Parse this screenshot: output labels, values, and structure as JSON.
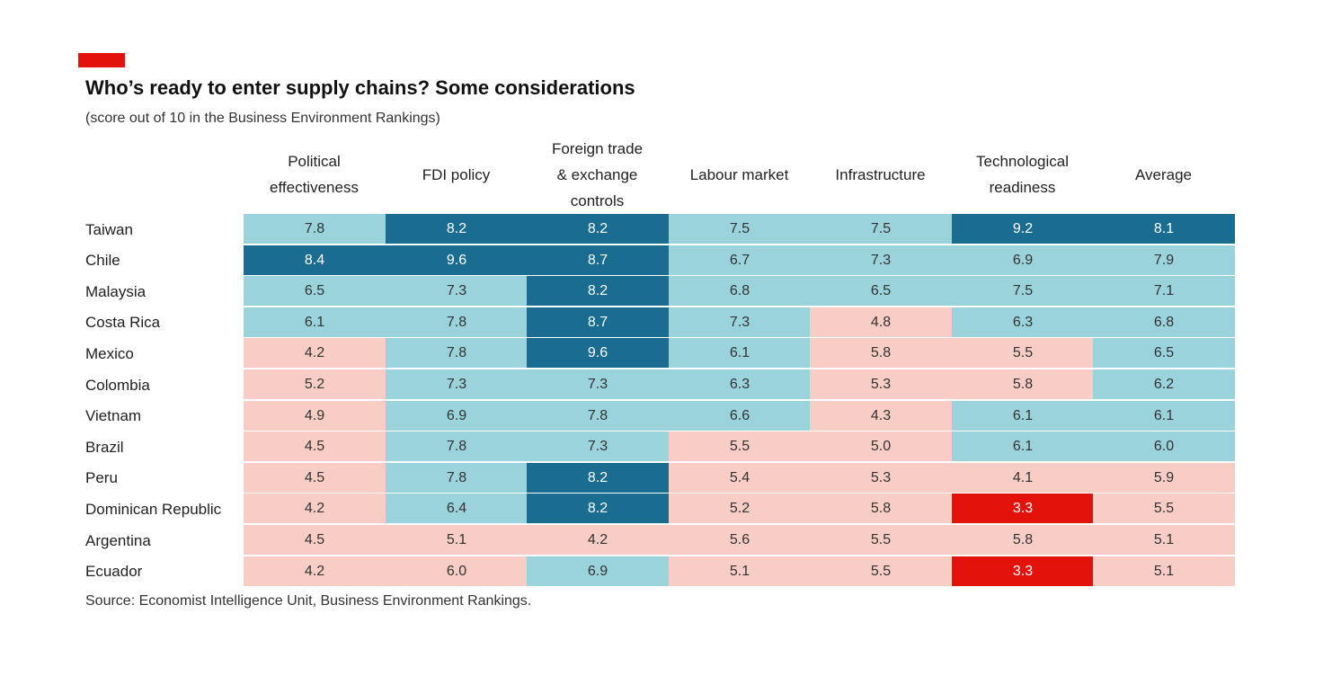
{
  "header": {
    "title": "Who’s ready to enter supply chains? Some considerations",
    "subtitle": "(score out of 10 in the Business Environment Rankings)"
  },
  "footer": {
    "source": "Source: Economist Intelligence Unit, Business Environment Rankings."
  },
  "colors": {
    "accent_red": "#e3120b",
    "light_pink": "#f7cdc6",
    "light_blue": "#9ad3dc",
    "dark_blue": "#1a6d91",
    "alert_red": "#e3120b"
  },
  "chart_data": {
    "type": "heatmap",
    "columns": [
      "Political\neffectiveness",
      "FDI policy",
      "Foreign trade\n& exchange\ncontrols",
      "Labour market",
      "Infrastructure",
      "Technological\nreadiness",
      "Average"
    ],
    "rows": [
      {
        "label": "Taiwan",
        "values": [
          "7.8",
          "8.2",
          "8.2",
          "7.5",
          "7.5",
          "9.2",
          "8.1"
        ],
        "bands": [
          "light",
          "dark",
          "dark",
          "light",
          "light",
          "dark",
          "dark"
        ]
      },
      {
        "label": "Chile",
        "values": [
          "8.4",
          "9.6",
          "8.7",
          "6.7",
          "7.3",
          "6.9",
          "7.9"
        ],
        "bands": [
          "dark",
          "dark",
          "dark",
          "light",
          "light",
          "light",
          "light"
        ]
      },
      {
        "label": "Malaysia",
        "values": [
          "6.5",
          "7.3",
          "8.2",
          "6.8",
          "6.5",
          "7.5",
          "7.1"
        ],
        "bands": [
          "light",
          "light",
          "dark",
          "light",
          "light",
          "light",
          "light"
        ]
      },
      {
        "label": "Costa Rica",
        "values": [
          "6.1",
          "7.8",
          "8.7",
          "7.3",
          "4.8",
          "6.3",
          "6.8"
        ],
        "bands": [
          "light",
          "light",
          "dark",
          "light",
          "pink",
          "light",
          "light"
        ]
      },
      {
        "label": "Mexico",
        "values": [
          "4.2",
          "7.8",
          "9.6",
          "6.1",
          "5.8",
          "5.5",
          "6.5"
        ],
        "bands": [
          "pink",
          "light",
          "dark",
          "light",
          "pink",
          "pink",
          "light"
        ]
      },
      {
        "label": "Colombia",
        "values": [
          "5.2",
          "7.3",
          "7.3",
          "6.3",
          "5.3",
          "5.8",
          "6.2"
        ],
        "bands": [
          "pink",
          "light",
          "light",
          "light",
          "pink",
          "pink",
          "light"
        ]
      },
      {
        "label": "Vietnam",
        "values": [
          "4.9",
          "6.9",
          "7.8",
          "6.6",
          "4.3",
          "6.1",
          "6.1"
        ],
        "bands": [
          "pink",
          "light",
          "light",
          "light",
          "pink",
          "light",
          "light"
        ]
      },
      {
        "label": "Brazil",
        "values": [
          "4.5",
          "7.8",
          "7.3",
          "5.5",
          "5.0",
          "6.1",
          "6.0"
        ],
        "bands": [
          "pink",
          "light",
          "light",
          "pink",
          "pink",
          "light",
          "light"
        ]
      },
      {
        "label": "Peru",
        "values": [
          "4.5",
          "7.8",
          "8.2",
          "5.4",
          "5.3",
          "4.1",
          "5.9"
        ],
        "bands": [
          "pink",
          "light",
          "dark",
          "pink",
          "pink",
          "pink",
          "pink"
        ]
      },
      {
        "label": "Dominican Republic",
        "values": [
          "4.2",
          "6.4",
          "8.2",
          "5.2",
          "5.8",
          "3.3",
          "5.5"
        ],
        "bands": [
          "pink",
          "light",
          "dark",
          "pink",
          "pink",
          "red",
          "pink"
        ]
      },
      {
        "label": "Argentina",
        "values": [
          "4.5",
          "5.1",
          "4.2",
          "5.6",
          "5.5",
          "5.8",
          "5.1"
        ],
        "bands": [
          "pink",
          "pink",
          "pink",
          "pink",
          "pink",
          "pink",
          "pink"
        ]
      },
      {
        "label": "Ecuador",
        "values": [
          "4.2",
          "6.0",
          "6.9",
          "5.1",
          "5.5",
          "3.3",
          "5.1"
        ],
        "bands": [
          "pink",
          "pink",
          "light",
          "pink",
          "pink",
          "red",
          "pink"
        ]
      }
    ]
  }
}
